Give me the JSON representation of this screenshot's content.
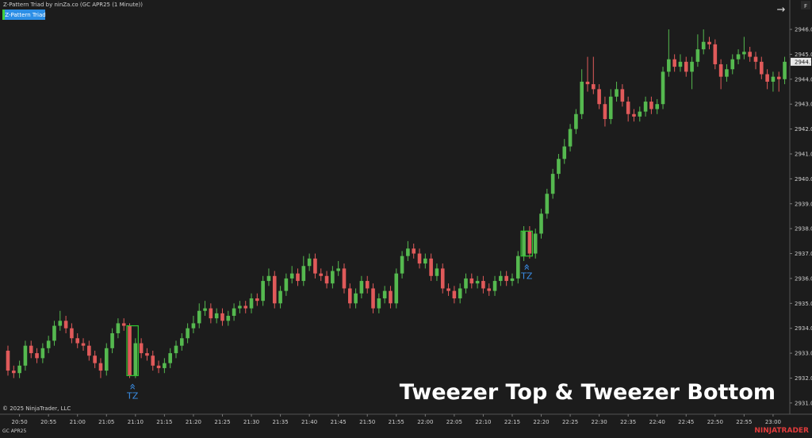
{
  "header": {
    "title": "Z-Pattern Triad by ninZa.co (GC APR25 (1 Minute))",
    "button": "Z-Pattern Triad",
    "arrow": "→",
    "corner": "F"
  },
  "footer": {
    "copyright": "© 2025 NinjaTrader, LLC",
    "instrument": "GC APR25",
    "brand": "NINJATRADER"
  },
  "chart_data": {
    "type": "candlestick",
    "title": "Tweezer Top & Tweezer Bottom",
    "up_color": "#55b94f",
    "down_color": "#e05a5a",
    "pattern_color": "#32c832",
    "marker_color": "#3a8ee6",
    "grid": false,
    "annotations": [
      "TZ",
      "TZ"
    ],
    "last_price": {
      "value": 2944.7,
      "label": "2944.7"
    },
    "ylim": [
      2930.55,
      2947.18
    ],
    "yticks": [
      {
        "value": 2931,
        "label": "2931.0"
      },
      {
        "value": 2932,
        "label": "2932.0"
      },
      {
        "value": 2933,
        "label": "2933.0"
      },
      {
        "value": 2934,
        "label": "2934.0"
      },
      {
        "value": 2935,
        "label": "2935.0"
      },
      {
        "value": 2936,
        "label": "2936.0"
      },
      {
        "value": 2937,
        "label": "2937.0"
      },
      {
        "value": 2938,
        "label": "2938.0"
      },
      {
        "value": 2939,
        "label": "2939.0"
      },
      {
        "value": 2940,
        "label": "2940.0"
      },
      {
        "value": 2941,
        "label": "2941.0"
      },
      {
        "value": 2942,
        "label": "2942.0"
      },
      {
        "value": 2943,
        "label": "2943.0"
      },
      {
        "value": 2944,
        "label": "2944.0"
      },
      {
        "value": 2945,
        "label": "2945.0"
      },
      {
        "value": 2946,
        "label": "2946.0"
      }
    ],
    "categories": [
      null,
      null,
      "20:50",
      null,
      null,
      null,
      null,
      "20:55",
      null,
      null,
      null,
      null,
      "21:00",
      null,
      null,
      null,
      null,
      "21:05",
      null,
      null,
      null,
      null,
      "21:10",
      null,
      null,
      null,
      null,
      "21:15",
      null,
      null,
      null,
      null,
      "21:20",
      null,
      null,
      null,
      null,
      "21:25",
      null,
      null,
      null,
      null,
      "21:30",
      null,
      null,
      null,
      null,
      "21:35",
      null,
      null,
      null,
      null,
      "21:40",
      null,
      null,
      null,
      null,
      "21:45",
      null,
      null,
      null,
      null,
      "21:50",
      null,
      null,
      null,
      null,
      "21:55",
      null,
      null,
      null,
      null,
      "22:00",
      null,
      null,
      null,
      null,
      "22:05",
      null,
      null,
      null,
      null,
      "22:10",
      null,
      null,
      null,
      null,
      "22:15",
      null,
      null,
      null,
      null,
      "22:20",
      null,
      null,
      null,
      null,
      "22:25",
      null,
      null,
      null,
      null,
      "22:30",
      null,
      null,
      null,
      null,
      "22:35",
      null,
      null,
      null,
      null,
      "22:40",
      null,
      null,
      null,
      null,
      "22:45",
      null,
      null,
      null,
      null,
      "22:50",
      null,
      null,
      null,
      null,
      "22:55",
      null,
      null,
      null,
      null,
      "23:00",
      null,
      null
    ],
    "open": [
      2933.1,
      2932.3,
      2932.2,
      2932.5,
      2933.3,
      2933.0,
      2932.8,
      2933.2,
      2933.5,
      2934.1,
      2934.3,
      2934.0,
      2933.6,
      2933.4,
      2933.3,
      2932.9,
      2932.6,
      2932.3,
      2933.2,
      2933.8,
      2934.2,
      2934.1,
      2932.1,
      2933.4,
      2933.0,
      2932.9,
      2932.5,
      2932.4,
      2932.6,
      2933.0,
      2933.3,
      2933.6,
      2934.0,
      2934.2,
      2934.7,
      2934.8,
      2934.4,
      2934.6,
      2934.3,
      2934.5,
      2934.8,
      2934.9,
      2934.8,
      2935.2,
      2935.1,
      2935.9,
      2936.1,
      2935.0,
      2935.5,
      2936.0,
      2936.2,
      2935.9,
      2936.5,
      2936.8,
      2936.2,
      2936.1,
      2935.8,
      2936.3,
      2936.4,
      2935.6,
      2935.0,
      2935.4,
      2935.9,
      2935.6,
      2934.8,
      2935.2,
      2935.5,
      2935.0,
      2936.2,
      2936.9,
      2937.2,
      2937.0,
      2936.6,
      2936.8,
      2936.1,
      2936.4,
      2935.6,
      2935.5,
      2935.2,
      2935.6,
      2936.0,
      2935.8,
      2935.9,
      2935.6,
      2935.5,
      2935.9,
      2936.1,
      2935.9,
      2936.0,
      2936.9,
      2937.9,
      2937.0,
      2937.8,
      2938.6,
      2939.4,
      2940.2,
      2940.8,
      2941.3,
      2942.0,
      2942.6,
      2943.9,
      2943.8,
      2943.6,
      2943.0,
      2942.4,
      2943.3,
      2943.6,
      2943.1,
      2942.6,
      2942.5,
      2942.7,
      2943.1,
      2942.8,
      2943.0,
      2944.3,
      2944.8,
      2944.5,
      2944.7,
      2944.3,
      2944.7,
      2945.2,
      2945.5,
      2945.4,
      2944.6,
      2944.1,
      2944.4,
      2944.8,
      2945.0,
      2945.1,
      2944.9,
      2944.7,
      2944.2,
      2943.9,
      2944.1,
      2944.0
    ],
    "high": [
      2933.3,
      2932.5,
      2932.7,
      2933.5,
      2933.5,
      2933.2,
      2933.4,
      2933.7,
      2934.3,
      2934.7,
      2934.5,
      2934.2,
      2933.8,
      2933.6,
      2933.5,
      2933.1,
      2932.8,
      2933.4,
      2934.0,
      2934.4,
      2934.4,
      2934.2,
      2933.6,
      2933.6,
      2933.2,
      2933.1,
      2932.7,
      2932.8,
      2933.2,
      2933.5,
      2933.8,
      2934.2,
      2934.5,
      2935.0,
      2935.1,
      2935.0,
      2934.8,
      2934.8,
      2934.7,
      2935.0,
      2935.1,
      2935.1,
      2935.4,
      2935.4,
      2936.1,
      2936.4,
      2936.3,
      2935.7,
      2936.2,
      2936.5,
      2936.4,
      2936.9,
      2937.0,
      2937.0,
      2936.4,
      2936.3,
      2936.5,
      2936.7,
      2936.6,
      2935.8,
      2935.6,
      2936.1,
      2936.1,
      2935.8,
      2935.4,
      2935.7,
      2935.7,
      2936.4,
      2937.1,
      2937.5,
      2937.4,
      2937.2,
      2937.0,
      2937.0,
      2936.6,
      2936.6,
      2935.8,
      2935.7,
      2935.8,
      2936.2,
      2936.2,
      2936.1,
      2936.1,
      2935.8,
      2936.1,
      2936.3,
      2936.3,
      2936.2,
      2937.1,
      2938.1,
      2938.1,
      2938.0,
      2938.8,
      2939.6,
      2940.4,
      2941.0,
      2941.6,
      2942.2,
      2942.8,
      2944.4,
      2944.9,
      2944.9,
      2943.8,
      2943.3,
      2943.6,
      2943.9,
      2943.8,
      2943.3,
      2942.8,
      2942.9,
      2943.3,
      2943.3,
      2943.2,
      2944.5,
      2946.0,
      2945.0,
      2945.0,
      2944.9,
      2944.9,
      2945.8,
      2946.0,
      2945.7,
      2945.6,
      2944.8,
      2944.6,
      2945.0,
      2945.2,
      2945.7,
      2945.3,
      2945.1,
      2944.9,
      2944.4,
      2944.3,
      2944.3,
      2944.9
    ],
    "low": [
      2932.1,
      2932.0,
      2932.0,
      2932.3,
      2932.8,
      2932.6,
      2932.6,
      2933.0,
      2933.3,
      2933.9,
      2933.8,
      2933.4,
      2933.2,
      2933.1,
      2932.7,
      2932.4,
      2932.0,
      2932.1,
      2933.0,
      2933.6,
      2933.9,
      2932.0,
      2932.0,
      2932.8,
      2932.7,
      2932.3,
      2932.2,
      2932.2,
      2932.4,
      2932.8,
      2933.1,
      2933.4,
      2933.8,
      2934.0,
      2934.5,
      2934.2,
      2934.2,
      2934.1,
      2934.1,
      2934.3,
      2934.6,
      2934.6,
      2934.6,
      2934.9,
      2934.9,
      2935.7,
      2934.8,
      2934.8,
      2935.3,
      2935.8,
      2935.7,
      2935.7,
      2936.3,
      2936.0,
      2935.9,
      2935.6,
      2935.6,
      2936.1,
      2935.4,
      2934.8,
      2934.8,
      2935.2,
      2935.4,
      2934.6,
      2934.6,
      2935.0,
      2934.8,
      2934.8,
      2936.0,
      2936.7,
      2936.8,
      2936.4,
      2936.4,
      2935.9,
      2935.9,
      2935.4,
      2935.3,
      2935.0,
      2935.0,
      2935.4,
      2935.6,
      2935.6,
      2935.4,
      2935.3,
      2935.3,
      2935.7,
      2935.7,
      2935.7,
      2935.8,
      2936.7,
      2936.8,
      2936.8,
      2937.6,
      2938.4,
      2939.2,
      2940.0,
      2940.6,
      2941.1,
      2941.8,
      2942.4,
      2943.5,
      2943.4,
      2942.8,
      2942.1,
      2942.2,
      2943.1,
      2942.9,
      2942.3,
      2942.3,
      2942.3,
      2942.5,
      2942.6,
      2942.6,
      2942.8,
      2944.1,
      2944.3,
      2944.3,
      2944.1,
      2943.6,
      2944.5,
      2945.0,
      2945.2,
      2944.4,
      2943.6,
      2943.9,
      2944.2,
      2944.6,
      2944.8,
      2944.7,
      2944.4,
      2944.0,
      2943.6,
      2943.5,
      2943.5,
      2943.8
    ],
    "close": [
      2932.3,
      2932.2,
      2932.5,
      2933.3,
      2933.0,
      2932.8,
      2933.2,
      2933.5,
      2934.1,
      2934.3,
      2934.0,
      2933.6,
      2933.4,
      2933.3,
      2932.9,
      2932.6,
      2932.3,
      2933.2,
      2933.8,
      2934.2,
      2934.1,
      2932.1,
      2933.4,
      2933.0,
      2932.9,
      2932.5,
      2932.4,
      2932.6,
      2933.0,
      2933.3,
      2933.6,
      2934.0,
      2934.2,
      2934.7,
      2934.8,
      2934.4,
      2934.6,
      2934.3,
      2934.5,
      2934.8,
      2934.9,
      2934.8,
      2935.2,
      2935.1,
      2935.9,
      2936.1,
      2935.0,
      2935.5,
      2936.0,
      2936.2,
      2935.9,
      2936.5,
      2936.8,
      2936.2,
      2936.1,
      2935.8,
      2936.3,
      2936.4,
      2935.6,
      2935.0,
      2935.4,
      2935.9,
      2935.6,
      2934.8,
      2935.2,
      2935.5,
      2935.0,
      2936.2,
      2936.9,
      2937.2,
      2937.0,
      2936.6,
      2936.8,
      2936.1,
      2936.4,
      2935.6,
      2935.5,
      2935.2,
      2935.6,
      2936.0,
      2935.8,
      2935.9,
      2935.6,
      2935.5,
      2935.9,
      2936.1,
      2935.9,
      2936.0,
      2936.9,
      2937.9,
      2937.0,
      2937.8,
      2938.6,
      2939.4,
      2940.2,
      2940.8,
      2941.3,
      2942.0,
      2942.6,
      2943.9,
      2943.8,
      2943.6,
      2943.0,
      2942.4,
      2943.3,
      2943.6,
      2943.1,
      2942.6,
      2942.5,
      2942.7,
      2943.1,
      2942.8,
      2943.0,
      2944.3,
      2944.8,
      2944.5,
      2944.7,
      2944.3,
      2944.7,
      2945.2,
      2945.5,
      2945.4,
      2944.6,
      2944.1,
      2944.4,
      2944.8,
      2945.0,
      2945.1,
      2944.9,
      2944.7,
      2944.2,
      2943.9,
      2944.1,
      2944.0,
      2944.7
    ]
  }
}
